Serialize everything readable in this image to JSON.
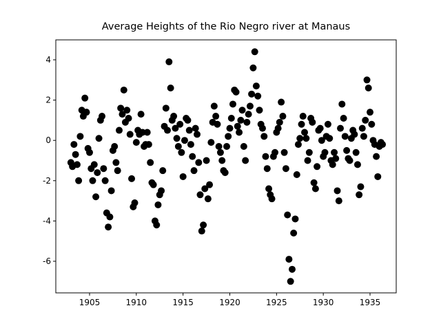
{
  "chart_data": {
    "type": "scatter",
    "title": "Average Heights of the Rio Negro river at Manaus",
    "xlim": [
      1901.39,
      1937.8
    ],
    "ylim": [
      -7.57,
      4.99
    ],
    "xticks": [
      1905,
      1910,
      1915,
      1920,
      1925,
      1930,
      1935
    ],
    "yticks": [
      -6,
      -4,
      -2,
      0,
      2,
      4
    ],
    "color": "#000000",
    "x": [
      1903,
      1903.17,
      1903.33,
      1903.5,
      1903.67,
      1903.83,
      1904,
      1904.17,
      1904.33,
      1904.5,
      1904.67,
      1904.83,
      1905,
      1905.17,
      1905.33,
      1905.5,
      1905.67,
      1905.83,
      1906,
      1906.17,
      1906.33,
      1906.5,
      1906.67,
      1906.83,
      1907,
      1907.17,
      1907.33,
      1907.5,
      1907.67,
      1907.83,
      1908,
      1908.17,
      1908.33,
      1908.5,
      1908.67,
      1908.83,
      1909,
      1909.17,
      1909.33,
      1909.5,
      1909.67,
      1909.83,
      1910,
      1910.17,
      1910.33,
      1910.5,
      1910.67,
      1910.83,
      1911,
      1911.17,
      1911.33,
      1911.5,
      1911.67,
      1911.83,
      1912,
      1912.17,
      1912.33,
      1912.5,
      1912.67,
      1912.83,
      1913,
      1913.17,
      1913.33,
      1913.5,
      1913.67,
      1913.83,
      1914,
      1914.17,
      1914.33,
      1914.5,
      1914.67,
      1914.83,
      1915,
      1915.17,
      1915.33,
      1915.5,
      1915.67,
      1915.83,
      1916,
      1916.17,
      1916.33,
      1916.5,
      1916.67,
      1916.83,
      1917,
      1917.17,
      1917.33,
      1917.5,
      1917.67,
      1917.83,
      1918,
      1918.17,
      1918.33,
      1918.5,
      1918.67,
      1918.83,
      1919,
      1919.17,
      1919.33,
      1919.5,
      1919.67,
      1919.83,
      1920,
      1920.17,
      1920.33,
      1920.5,
      1920.67,
      1920.83,
      1921,
      1921.17,
      1921.33,
      1921.5,
      1921.67,
      1921.83,
      1922,
      1922.17,
      1922.33,
      1922.5,
      1922.67,
      1922.83,
      1923,
      1923.17,
      1923.33,
      1923.5,
      1923.67,
      1923.83,
      1924,
      1924.17,
      1924.33,
      1924.5,
      1924.67,
      1924.83,
      1925,
      1925.17,
      1925.33,
      1925.5,
      1925.67,
      1925.83,
      1926,
      1926.17,
      1926.33,
      1926.5,
      1926.67,
      1926.83,
      1927,
      1927.17,
      1927.33,
      1927.5,
      1927.67,
      1927.83,
      1928,
      1928.17,
      1928.33,
      1928.5,
      1928.67,
      1928.83,
      1929,
      1929.17,
      1929.33,
      1929.5,
      1929.67,
      1929.83,
      1930,
      1930.17,
      1930.33,
      1930.5,
      1930.67,
      1930.83,
      1931,
      1931.17,
      1931.33,
      1931.5,
      1931.67,
      1931.83,
      1932,
      1932.17,
      1932.33,
      1932.5,
      1932.67,
      1932.83,
      1933,
      1933.17,
      1933.33,
      1933.5,
      1933.67,
      1933.83,
      1934,
      1934.17,
      1934.33,
      1934.5,
      1934.67,
      1934.83,
      1935,
      1935.17,
      1935.33,
      1935.5,
      1935.67,
      1935.83,
      1936,
      1936.17,
      1936.33
    ],
    "values": [
      -1.1,
      -1.3,
      -0.2,
      -0.7,
      -1.2,
      -2.0,
      0.2,
      1.5,
      1.2,
      2.1,
      1.4,
      -0.4,
      -0.6,
      -1.4,
      -2.0,
      -1.2,
      -2.8,
      -1.6,
      0.1,
      1.0,
      1.2,
      -1.4,
      -2.0,
      -3.6,
      -4.3,
      -3.8,
      -2.5,
      -0.5,
      -0.3,
      -1.1,
      -1.5,
      0.5,
      1.6,
      1.3,
      2.5,
      0.9,
      1.5,
      1.1,
      0.3,
      -1.9,
      -3.3,
      -3.1,
      -0.1,
      0.5,
      0.3,
      1.3,
      0.4,
      -0.3,
      -0.2,
      0.4,
      -0.2,
      -1.1,
      -2.1,
      -2.2,
      -4.0,
      -4.2,
      -3.2,
      -2.7,
      -2.5,
      -1.5,
      0.7,
      1.6,
      0.5,
      3.9,
      2.6,
      1.0,
      1.2,
      0.6,
      0.1,
      -0.3,
      0.8,
      -0.6,
      -1.8,
      0.0,
      1.1,
      1.0,
      0.5,
      -0.2,
      -0.8,
      -1.5,
      0.6,
      0.3,
      -1.1,
      -2.7,
      -4.5,
      -4.2,
      -2.4,
      -1.0,
      -2.9,
      -2.2,
      -0.1,
      0.9,
      1.7,
      1.2,
      0.8,
      -0.3,
      -0.6,
      -1.0,
      -1.5,
      -1.6,
      -0.3,
      0.2,
      0.6,
      1.1,
      1.8,
      2.5,
      2.4,
      0.7,
      0.4,
      1.0,
      1.5,
      -0.3,
      -1.0,
      0.9,
      1.3,
      1.7,
      2.3,
      3.6,
      4.4,
      2.7,
      2.2,
      1.5,
      0.8,
      0.6,
      0.2,
      -0.8,
      -1.4,
      -2.4,
      -2.7,
      -2.9,
      -0.8,
      -0.6,
      0.4,
      0.6,
      0.9,
      1.9,
      1.2,
      -0.6,
      -1.4,
      -3.7,
      -5.9,
      -7.0,
      -6.4,
      -4.6,
      -3.9,
      -1.7,
      -0.2,
      0.1,
      0.8,
      1.2,
      0.4,
      0.1,
      -1.0,
      -0.6,
      1.1,
      0.9,
      -2.1,
      -2.4,
      -1.3,
      0.5,
      0.6,
      0.0,
      -0.8,
      -0.6,
      0.2,
      0.8,
      0.1,
      -1.0,
      -1.2,
      -0.6,
      -0.9,
      -2.5,
      -3.0,
      0.6,
      1.8,
      1.1,
      0.2,
      -0.5,
      -0.9,
      -1.0,
      0.1,
      0.5,
      0.3,
      -0.6,
      -1.2,
      -2.7,
      -2.3,
      0.6,
      0.2,
      1.0,
      3.0,
      2.6,
      1.4,
      0.8,
      0.0,
      -0.2,
      -0.8,
      -1.8,
      -0.3,
      -0.1,
      -0.2
    ]
  }
}
